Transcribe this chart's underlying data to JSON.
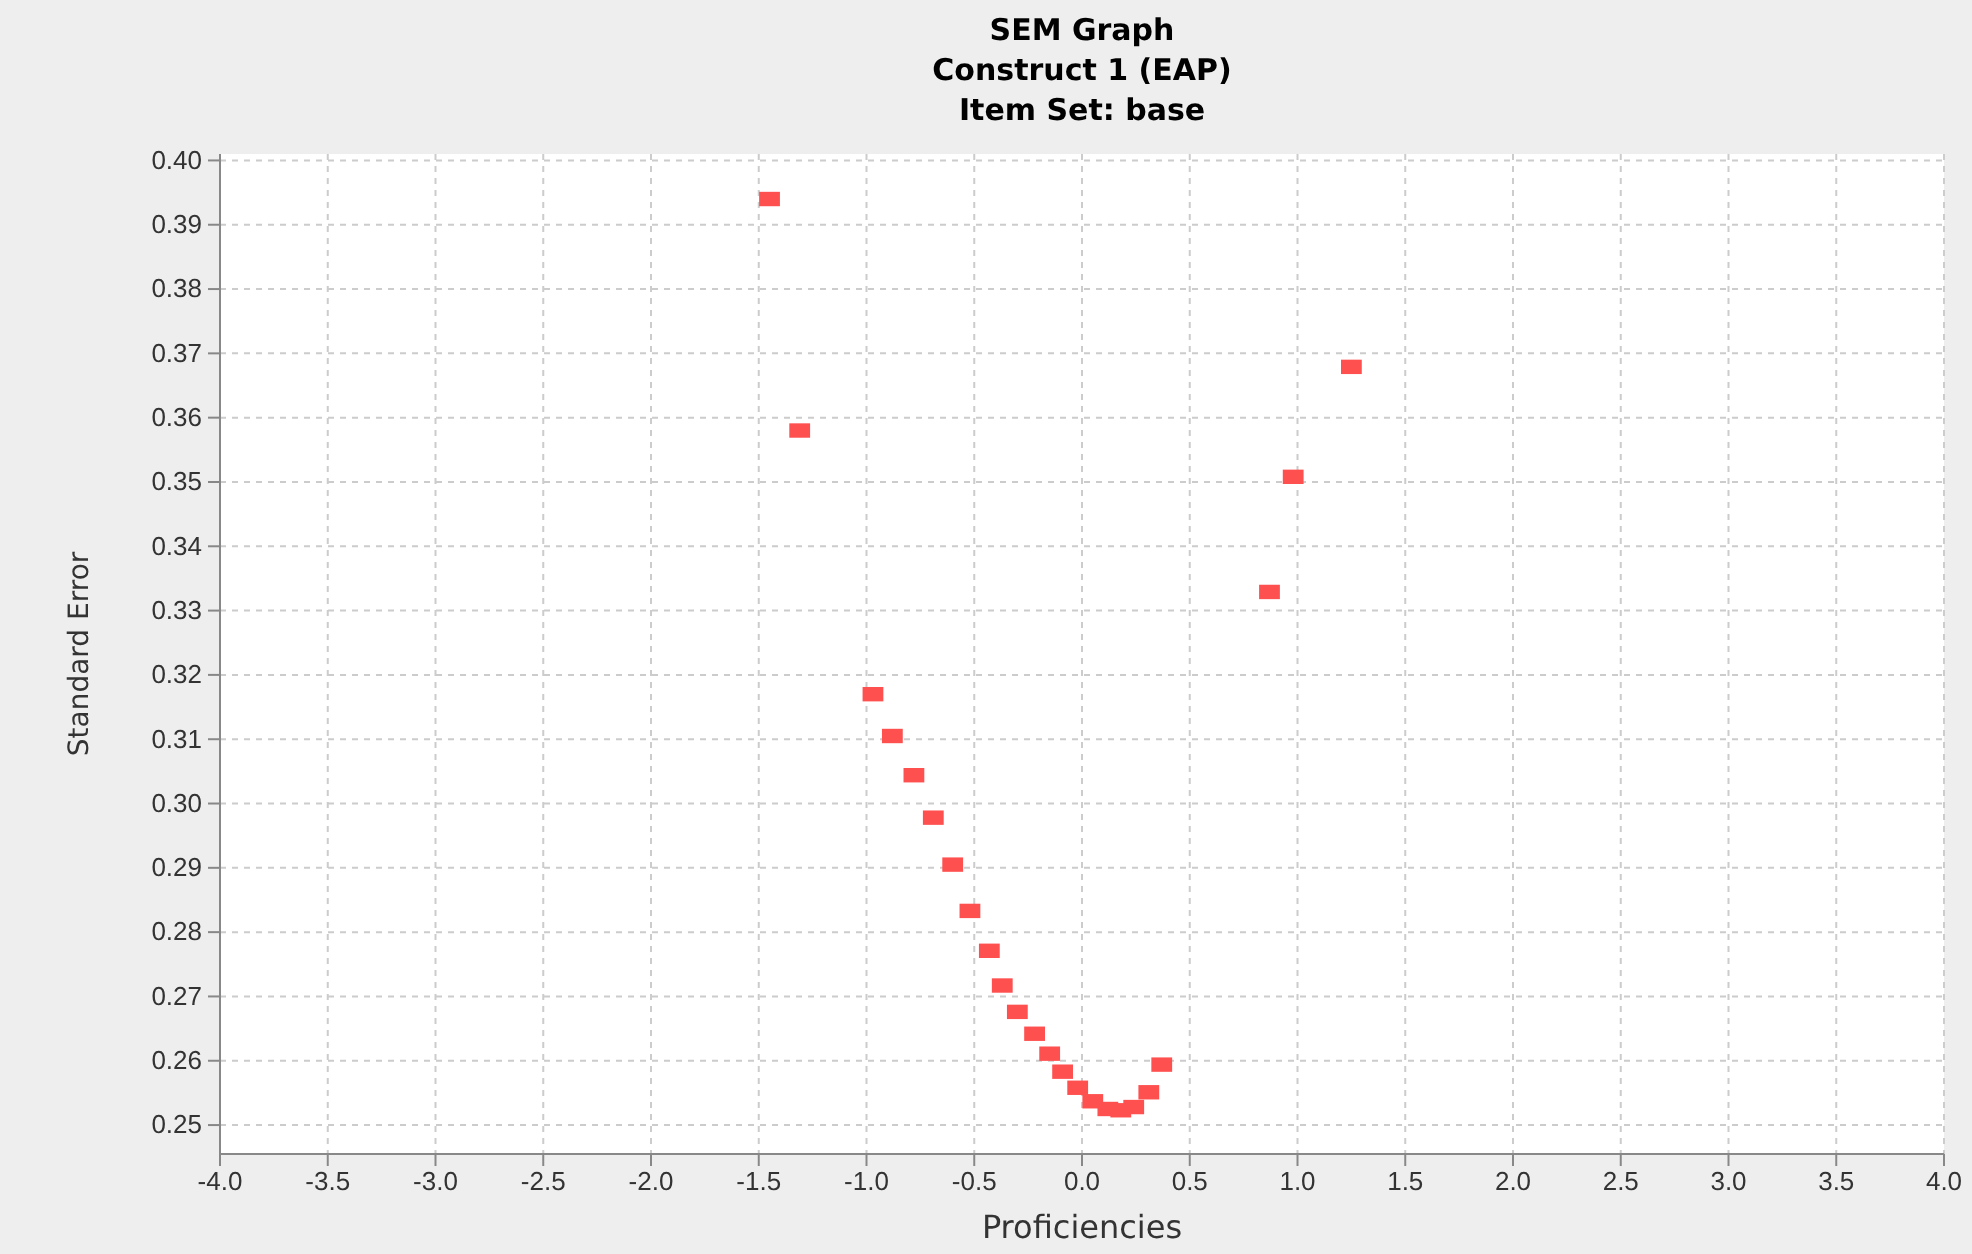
{
  "chart_data": {
    "type": "scatter",
    "title": "SEM Graph",
    "subtitle": "Construct 1 (EAP)\nItem Set: base",
    "xlabel": "Proficiencies",
    "ylabel": "Standard Error",
    "series": [
      {
        "color": "#ff5050",
        "x": [
          -1.45,
          -1.31,
          -0.97,
          -0.88,
          -0.78,
          -0.69,
          -0.6,
          -0.52,
          -0.43,
          -0.37,
          -0.3,
          -0.22,
          -0.15,
          -0.09,
          -0.02,
          0.05,
          0.12,
          0.18,
          0.24,
          0.31,
          0.37,
          0.87,
          0.98,
          1.25
        ],
        "values": [
          0.394,
          0.358,
          0.317,
          0.3105,
          0.3044,
          0.2978,
          0.2905,
          0.2833,
          0.2771,
          0.2717,
          0.2676,
          0.2642,
          0.2611,
          0.2583,
          0.2558,
          0.2537,
          0.2525,
          0.2523,
          0.2528,
          0.2551,
          0.2594,
          0.3329,
          0.3508,
          0.3679
        ]
      }
    ],
    "xlim": [
      -4,
      4
    ],
    "ylim": [
      0.2455,
      0.401
    ],
    "xticks": [
      {
        "value": -4,
        "label": "-4.0"
      },
      -3.5,
      {
        "value": -3,
        "label": "-3.0"
      },
      -2.5,
      {
        "value": -2,
        "label": "-2.0"
      },
      -1.5,
      {
        "value": -1,
        "label": "-1.0"
      },
      -0.5,
      {
        "value": 0,
        "label": "0.0"
      },
      0.5,
      {
        "value": 1,
        "label": "1.0"
      },
      1.5,
      {
        "value": 2,
        "label": "2.0"
      },
      2.5,
      {
        "value": 3,
        "label": "3.0"
      },
      3.5,
      {
        "value": 4,
        "label": "4.0"
      }
    ],
    "yticks": [
      0.25,
      0.26,
      0.27,
      0.28,
      0.29,
      {
        "value": 0.3,
        "label": "0.30"
      },
      0.31,
      0.32,
      0.33,
      0.34,
      0.35,
      0.36,
      0.37,
      0.38,
      0.39,
      {
        "value": 0.4,
        "label": "0.40"
      }
    ],
    "grid": true,
    "marker": "square"
  }
}
